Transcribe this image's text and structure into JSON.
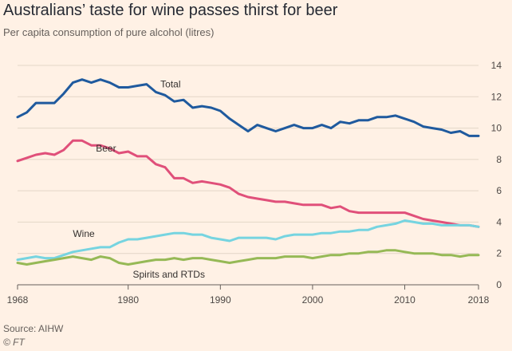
{
  "title": "Australians’ taste for wine passes thirst for beer",
  "subtitle": "Per capita consumption of pure alcohol (litres)",
  "source": "Source: AIHW",
  "credit": "© FT",
  "chart_data": {
    "type": "line",
    "title": "Australians’ taste for wine passes thirst for beer",
    "subtitle": "Per capita consumption of pure alcohol (litres)",
    "xlabel": "",
    "ylabel": "",
    "xlim": [
      1968,
      2018
    ],
    "ylim": [
      0,
      14
    ],
    "x_ticks": [
      1968,
      1980,
      1990,
      2000,
      2010,
      2018
    ],
    "y_ticks": [
      0,
      2,
      4,
      6,
      8,
      10,
      12,
      14
    ],
    "grid": "horizontal",
    "x": [
      1968,
      1969,
      1970,
      1971,
      1972,
      1973,
      1974,
      1975,
      1976,
      1977,
      1978,
      1979,
      1980,
      1981,
      1982,
      1983,
      1984,
      1985,
      1986,
      1987,
      1988,
      1989,
      1990,
      1991,
      1992,
      1993,
      1994,
      1995,
      1996,
      1997,
      1998,
      1999,
      2000,
      2001,
      2002,
      2003,
      2004,
      2005,
      2006,
      2007,
      2008,
      2009,
      2010,
      2011,
      2012,
      2013,
      2014,
      2015,
      2016,
      2017,
      2018
    ],
    "series": [
      {
        "name": "Total",
        "color": "#1f5a9e",
        "label_at": [
          1983.5,
          12.8
        ],
        "values": [
          10.7,
          11.0,
          11.6,
          11.6,
          11.6,
          12.2,
          12.9,
          13.1,
          12.9,
          13.1,
          12.9,
          12.6,
          12.6,
          12.7,
          12.8,
          12.3,
          12.1,
          11.7,
          11.8,
          11.3,
          11.4,
          11.3,
          11.1,
          10.6,
          10.2,
          9.8,
          10.2,
          10.0,
          9.8,
          10.0,
          10.2,
          10.0,
          10.0,
          10.2,
          10.0,
          10.4,
          10.3,
          10.5,
          10.5,
          10.7,
          10.7,
          10.8,
          10.6,
          10.4,
          10.1,
          10.0,
          9.9,
          9.7,
          9.8,
          9.5,
          9.5
        ]
      },
      {
        "name": "Beer",
        "color": "#e0507a",
        "label_at": [
          1976.5,
          8.7
        ],
        "values": [
          7.9,
          8.1,
          8.3,
          8.4,
          8.3,
          8.6,
          9.2,
          9.2,
          8.9,
          8.9,
          8.7,
          8.4,
          8.5,
          8.2,
          8.2,
          7.7,
          7.5,
          6.8,
          6.8,
          6.5,
          6.6,
          6.5,
          6.4,
          6.2,
          5.8,
          5.6,
          5.5,
          5.4,
          5.3,
          5.3,
          5.2,
          5.1,
          5.1,
          5.1,
          4.9,
          5.0,
          4.7,
          4.6,
          4.6,
          4.6,
          4.6,
          4.6,
          4.6,
          4.4,
          4.2,
          4.1,
          4.0,
          3.9,
          3.8,
          3.8,
          3.7
        ]
      },
      {
        "name": "Wine",
        "color": "#76d4e0",
        "label_at": [
          1974.0,
          3.25
        ],
        "values": [
          1.6,
          1.7,
          1.8,
          1.7,
          1.7,
          1.9,
          2.1,
          2.2,
          2.3,
          2.4,
          2.4,
          2.7,
          2.9,
          2.9,
          3.0,
          3.1,
          3.2,
          3.3,
          3.3,
          3.2,
          3.2,
          3.0,
          2.9,
          2.8,
          3.0,
          3.0,
          3.0,
          3.0,
          2.9,
          3.1,
          3.2,
          3.2,
          3.2,
          3.3,
          3.3,
          3.4,
          3.4,
          3.5,
          3.5,
          3.7,
          3.8,
          3.9,
          4.1,
          4.0,
          3.9,
          3.9,
          3.8,
          3.8,
          3.8,
          3.8,
          3.7
        ]
      },
      {
        "name": "Spirits and RTDs",
        "color": "#96b956",
        "label_at": [
          1980.5,
          0.65
        ],
        "values": [
          1.4,
          1.3,
          1.4,
          1.5,
          1.6,
          1.7,
          1.8,
          1.7,
          1.6,
          1.8,
          1.7,
          1.4,
          1.3,
          1.4,
          1.5,
          1.6,
          1.6,
          1.7,
          1.6,
          1.7,
          1.7,
          1.6,
          1.5,
          1.4,
          1.5,
          1.6,
          1.7,
          1.7,
          1.7,
          1.8,
          1.8,
          1.8,
          1.7,
          1.8,
          1.9,
          1.9,
          2.0,
          2.0,
          2.1,
          2.1,
          2.2,
          2.2,
          2.1,
          2.0,
          2.0,
          2.0,
          1.9,
          1.9,
          1.8,
          1.9,
          1.9
        ]
      }
    ]
  }
}
